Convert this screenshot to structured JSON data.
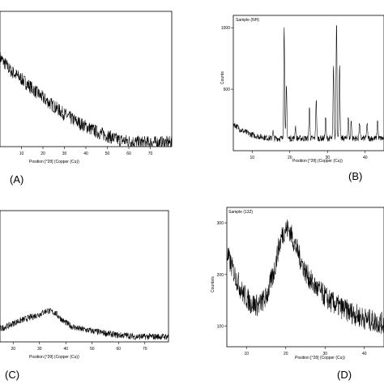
{
  "chart_data": [
    {
      "panel": "(A)",
      "type": "line",
      "xlabel": "Position [°2θ] (Copper (Cu))",
      "ylabel": "",
      "sample_label": "",
      "x_ticks": [
        "10",
        "20",
        "30",
        "40",
        "50",
        "60",
        "70"
      ],
      "y_ticks": [],
      "xlim": [
        0,
        80
      ],
      "ylim": [
        0,
        1
      ],
      "series": [
        {
          "x": [
            0,
            5,
            10,
            15,
            20,
            25,
            30,
            35,
            40,
            45,
            50,
            55,
            60,
            65,
            70,
            75,
            80
          ],
          "y": [
            0.66,
            0.56,
            0.5,
            0.43,
            0.36,
            0.3,
            0.24,
            0.19,
            0.15,
            0.11,
            0.08,
            0.05,
            0.04,
            0.03,
            0.03,
            0.03,
            0.03
          ],
          "noise": 0.05
        }
      ]
    },
    {
      "panel": "(B)",
      "type": "line",
      "xlabel": "Position [°2θ] (Copper (Cu))",
      "ylabel": "Counts",
      "sample_label": "Sample (NH)",
      "x_ticks": [
        "10",
        "20",
        "30",
        "40"
      ],
      "y_ticks": [
        "500",
        "1000"
      ],
      "xlim": [
        5,
        45
      ],
      "ylim": [
        0,
        1100
      ],
      "series": [
        {
          "x": [
            5,
            7,
            9,
            11,
            13,
            15,
            17,
            19,
            21,
            23,
            25,
            27,
            29,
            31,
            33,
            35,
            37,
            39,
            41,
            43,
            45
          ],
          "y": [
            220,
            170,
            140,
            120,
            110,
            100,
            100,
            100,
            100,
            100,
            100,
            100,
            100,
            100,
            100,
            100,
            100,
            100,
            100,
            100,
            100
          ],
          "noise": 25,
          "peaks": [
            {
              "x": 15.5,
              "y": 60
            },
            {
              "x": 18.5,
              "y": 900
            },
            {
              "x": 19.1,
              "y": 420
            },
            {
              "x": 21.5,
              "y": 100
            },
            {
              "x": 25.2,
              "y": 260
            },
            {
              "x": 27.0,
              "y": 320
            },
            {
              "x": 29.5,
              "y": 180
            },
            {
              "x": 31.6,
              "y": 580
            },
            {
              "x": 32.4,
              "y": 960
            },
            {
              "x": 33.2,
              "y": 600
            },
            {
              "x": 35.5,
              "y": 180
            },
            {
              "x": 36.3,
              "y": 150
            },
            {
              "x": 38.5,
              "y": 130
            },
            {
              "x": 40.5,
              "y": 120
            },
            {
              "x": 43.3,
              "y": 160
            }
          ]
        }
      ]
    },
    {
      "panel": "(C)",
      "type": "line",
      "xlabel": "Position [°2θ] (Copper (Cu))",
      "ylabel": "",
      "sample_label": "",
      "x_ticks": [
        "20",
        "30",
        "40",
        "50",
        "60",
        "70"
      ],
      "y_ticks": [],
      "xlim": [
        15,
        79
      ],
      "ylim": [
        0,
        1
      ],
      "series": [
        {
          "x": [
            15,
            18,
            21,
            24,
            27,
            30,
            33,
            36,
            39,
            42,
            45,
            48,
            51,
            54,
            57,
            60,
            63,
            66,
            69,
            72,
            75,
            79
          ],
          "y": [
            0.1,
            0.12,
            0.15,
            0.17,
            0.19,
            0.21,
            0.24,
            0.22,
            0.16,
            0.12,
            0.1,
            0.09,
            0.08,
            0.07,
            0.06,
            0.05,
            0.05,
            0.04,
            0.04,
            0.04,
            0.04,
            0.04
          ],
          "noise": 0.025
        }
      ]
    },
    {
      "panel": "(D)",
      "type": "line",
      "xlabel": "Position [°2θ] (Copper (Cu))",
      "ylabel": "Counts/s",
      "sample_label": "Sample (132)",
      "x_ticks": [
        "10",
        "20",
        "30",
        "40"
      ],
      "y_ticks": [
        "100",
        "200",
        "300"
      ],
      "xlim": [
        5,
        45
      ],
      "ylim": [
        60,
        330
      ],
      "series": [
        {
          "x": [
            5,
            7,
            9,
            11,
            13,
            15,
            17,
            18,
            19,
            20,
            21,
            22,
            23,
            24,
            25,
            27,
            29,
            31,
            33,
            35,
            37,
            39,
            41,
            43,
            45
          ],
          "y": [
            240,
            200,
            165,
            145,
            140,
            155,
            205,
            245,
            275,
            290,
            285,
            265,
            245,
            225,
            205,
            180,
            165,
            150,
            140,
            132,
            125,
            118,
            112,
            108,
            105
          ],
          "noise": 22
        }
      ]
    }
  ],
  "panel_labels": [
    "(A)",
    "(B)",
    "(C)",
    "(D)"
  ]
}
